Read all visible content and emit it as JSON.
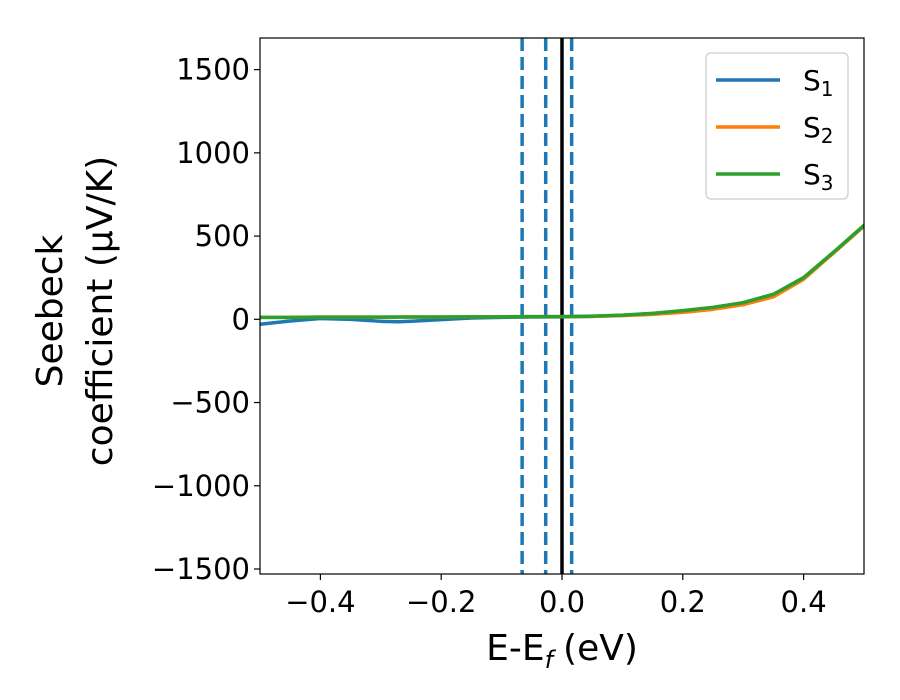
{
  "chart_data": {
    "type": "line",
    "xlabel": "E-E",
    "xlabel_sub": "f",
    "xlabel_unit": "(eV)",
    "ylabel_line1": "Seebeck",
    "ylabel_line2": "coefficient  (μV/K)",
    "xlim": [
      -0.5,
      0.5
    ],
    "ylim": [
      -1530,
      1690
    ],
    "x_ticks": [
      -0.4,
      -0.2,
      0.0,
      0.2,
      0.4
    ],
    "x_tick_labels": [
      "−0.4",
      "−0.2",
      "0.0",
      "0.2",
      "0.4"
    ],
    "y_ticks": [
      -1500,
      -1000,
      -500,
      0,
      500,
      1000,
      1500
    ],
    "y_tick_labels": [
      "−1500",
      "−1000",
      "−500",
      "0",
      "500",
      "1000",
      "1500"
    ],
    "grid": false,
    "legend_position": "top-right",
    "vlines": [
      {
        "x": 0.0,
        "style": "solid",
        "color": "#000000"
      },
      {
        "x": -0.066,
        "style": "dashed",
        "color": "#1f77b4"
      },
      {
        "x": -0.027,
        "style": "dashed",
        "color": "#1f77b4"
      },
      {
        "x": 0.016,
        "style": "dashed",
        "color": "#1f77b4"
      }
    ],
    "series": [
      {
        "name": "S",
        "sub": "1",
        "color": "#1f77b4",
        "x": [
          -0.5,
          -0.45,
          -0.4,
          -0.35,
          -0.3,
          -0.27,
          -0.25,
          -0.2,
          -0.15,
          -0.1,
          -0.05,
          0.0,
          0.05,
          0.1,
          0.15,
          0.2,
          0.25,
          0.3,
          0.35,
          0.4,
          0.45,
          0.5
        ],
        "y": [
          -30,
          -10,
          5,
          0,
          -12,
          -15,
          -12,
          -2,
          8,
          12,
          14,
          15,
          18,
          24,
          35,
          50,
          70,
          100,
          150,
          250,
          400,
          560
        ]
      },
      {
        "name": "S",
        "sub": "2",
        "color": "#ff7f0e",
        "x": [
          -0.5,
          -0.45,
          -0.4,
          -0.35,
          -0.3,
          -0.25,
          -0.2,
          -0.15,
          -0.1,
          -0.05,
          0.0,
          0.05,
          0.1,
          0.15,
          0.2,
          0.25,
          0.3,
          0.35,
          0.4,
          0.45,
          0.5
        ],
        "y": [
          12,
          12,
          13,
          13,
          13,
          14,
          14,
          15,
          15,
          16,
          16,
          18,
          22,
          30,
          42,
          60,
          88,
          135,
          240,
          400,
          560
        ]
      },
      {
        "name": "S",
        "sub": "3",
        "color": "#2ca02c",
        "x": [
          -0.5,
          -0.45,
          -0.4,
          -0.35,
          -0.3,
          -0.25,
          -0.2,
          -0.15,
          -0.1,
          -0.05,
          0.0,
          0.05,
          0.1,
          0.15,
          0.2,
          0.25,
          0.3,
          0.35,
          0.4,
          0.45,
          0.5
        ],
        "y": [
          12,
          12,
          13,
          13,
          13,
          14,
          14,
          15,
          15,
          16,
          16,
          19,
          25,
          36,
          52,
          72,
          100,
          150,
          250,
          405,
          565
        ]
      }
    ]
  }
}
